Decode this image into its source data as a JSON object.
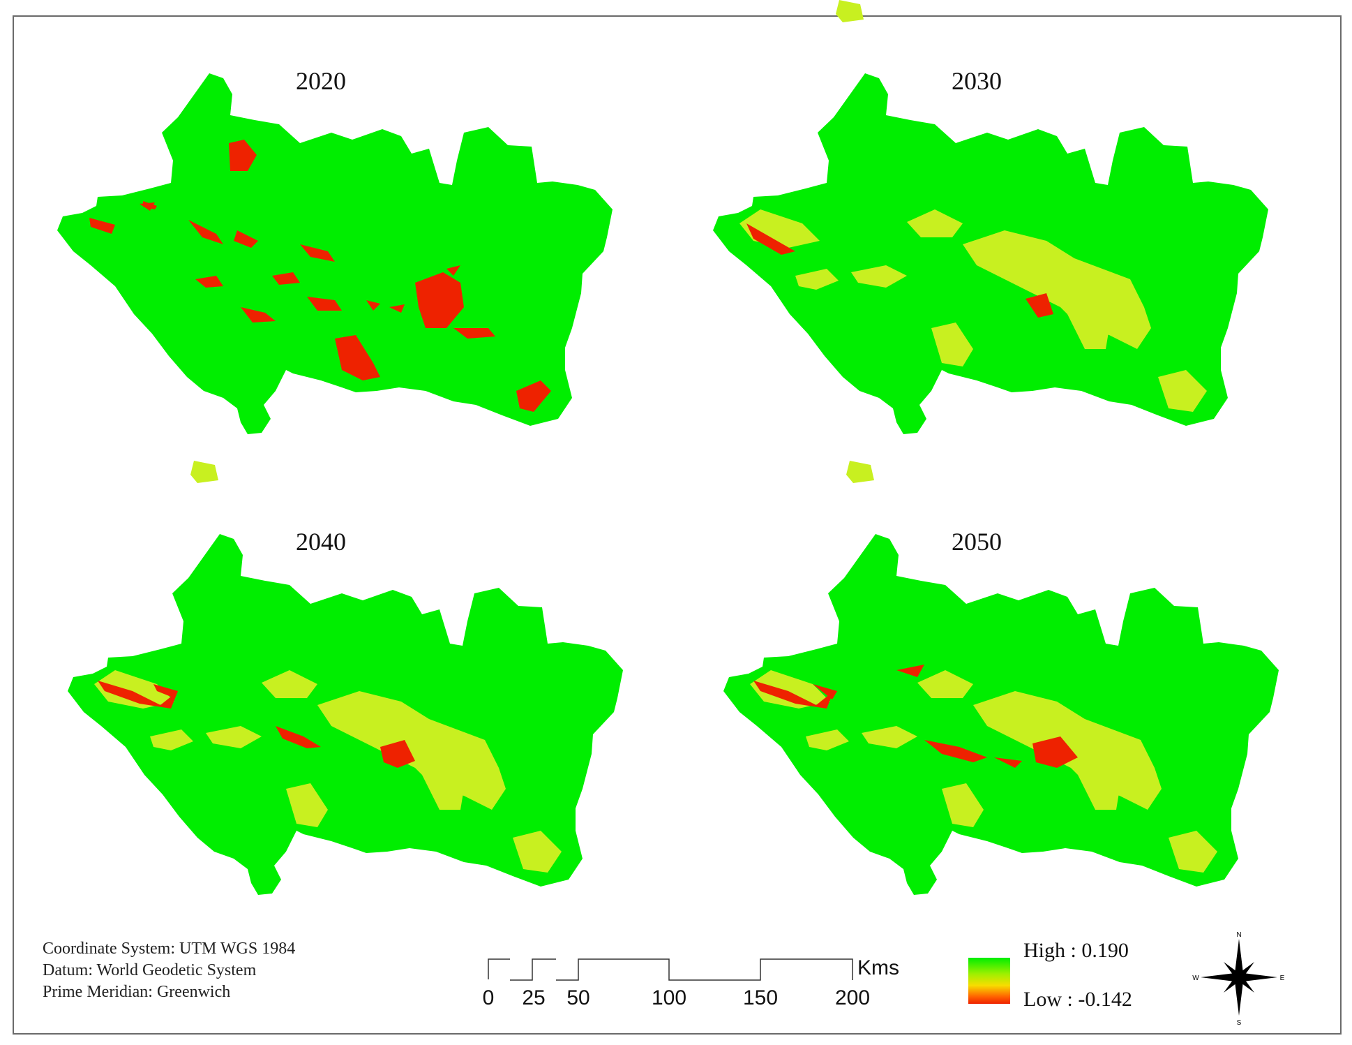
{
  "panels": [
    {
      "year": "2020"
    },
    {
      "year": "2030"
    },
    {
      "year": "2040"
    },
    {
      "year": "2050"
    }
  ],
  "metadata": {
    "coordinate_system": "Coordinate System: UTM WGS 1984",
    "datum": "Datum: World Geodetic System",
    "prime_meridian": "Prime Meridian: Greenwich"
  },
  "scale_bar": {
    "unit": "Kms",
    "ticks": [
      "0",
      "25",
      "50",
      "100",
      "150",
      "200"
    ]
  },
  "legend": {
    "high_label": "High : 0.190",
    "low_label": "Low : -0.142",
    "high_value": 0.19,
    "low_value": -0.142
  },
  "north_arrow": {
    "letters": [
      "N",
      "E",
      "S",
      "W"
    ],
    "icon": "compass-rose-icon"
  },
  "colors": {
    "high": "#00ee00",
    "mid": "#c8f020",
    "low": "#ee2200",
    "frame": "#6a6a6a"
  }
}
